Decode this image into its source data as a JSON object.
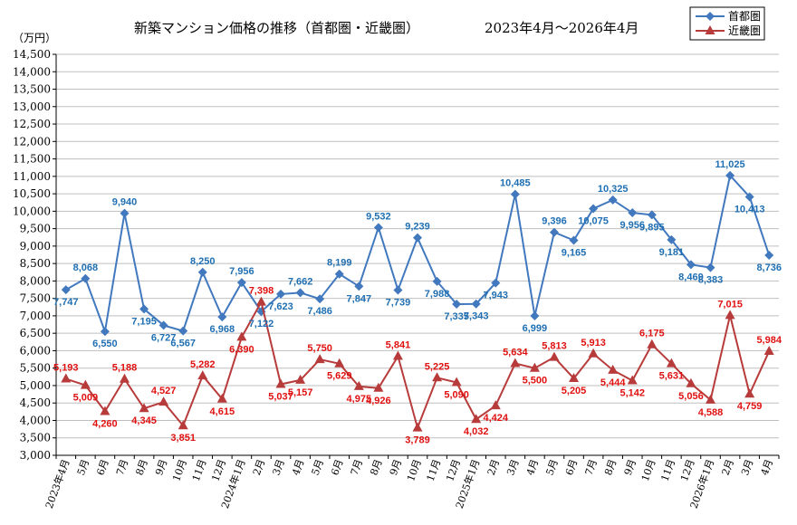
{
  "chart_data": {
    "type": "line",
    "title": "新築マンション価格の推移（首都圏・近畿圏）",
    "subtitle": "2023年4月～2026年4月",
    "ylabel": "（万円）",
    "ylim": [
      3000,
      14500
    ],
    "ystep": 500,
    "grid": "horizontal",
    "legend_position": "top-right",
    "categories": [
      "2023年4月",
      "5月",
      "6月",
      "7月",
      "8月",
      "9月",
      "10月",
      "11月",
      "12月",
      "2024年1月",
      "2月",
      "3月",
      "4月",
      "5月",
      "6月",
      "7月",
      "8月",
      "9月",
      "10月",
      "11月",
      "12月",
      "2025年1月",
      "2月",
      "3月",
      "4月",
      "5月",
      "6月",
      "7月",
      "8月",
      "9月",
      "10月",
      "11月",
      "12月",
      "2026年1月",
      "2月",
      "3月",
      "4月"
    ],
    "series": [
      {
        "name": "首都圏",
        "color": "#4178be",
        "marker": "diamond",
        "values": [
          7747,
          8068,
          6550,
          9940,
          7195,
          6727,
          6567,
          8250,
          6968,
          7956,
          7122,
          7623,
          7662,
          7486,
          8199,
          7847,
          9532,
          7739,
          9239,
          7988,
          7335,
          7343,
          7943,
          10485,
          6999,
          9396,
          9165,
          10075,
          10325,
          9956,
          9895,
          9181,
          8469,
          8383,
          11025,
          10413,
          8736
        ],
        "labels": [
          "7,747",
          "8,068",
          "6,550",
          "9,940",
          "7,195",
          "6,727",
          "6,567",
          "8,250",
          "6,968",
          "7,956",
          "7,122",
          "7,623",
          "7,662",
          "7,486",
          "8,199",
          "7,847",
          "9,532",
          "7,739",
          "9,239",
          "7,988",
          "7,335",
          "7,343",
          "7,943",
          "10,485",
          "6,999",
          "9,396",
          "9,165",
          "10,075",
          "10,325",
          "9,956",
          "9,895",
          "9,181",
          "8,469",
          "8,383",
          "11,025",
          "10,413",
          "8,736"
        ],
        "label_colors": "#1f6fb2"
      },
      {
        "name": "近畿圏",
        "color": "#b83b3b",
        "marker": "triangle",
        "values": [
          5193,
          5009,
          4260,
          5188,
          4345,
          4527,
          3851,
          5282,
          4615,
          6390,
          7398,
          5037,
          5157,
          5750,
          5629,
          4975,
          4926,
          5841,
          3789,
          5225,
          5090,
          4032,
          4424,
          5634,
          5500,
          5813,
          5205,
          5913,
          5444,
          5142,
          6175,
          5631,
          5056,
          4588,
          7015,
          4759,
          5984
        ],
        "labels": [
          "5,193",
          "5,009",
          "4,260",
          "5,188",
          "4,345",
          "4,527",
          "3,851",
          "5,282",
          "4,615",
          "6,390",
          "7,398",
          "5,037",
          "5,157",
          "5,750",
          "5,629",
          "4,975",
          "4,926",
          "5,841",
          "3,789",
          "5,225",
          "5,090",
          "4,032",
          "4,424",
          "5,634",
          "5,500",
          "5,813",
          "5,205",
          "5,913",
          "5,444",
          "5,142",
          "6,175",
          "5,631",
          "5,056",
          "4,588",
          "7,015",
          "4,759",
          "5,984"
        ],
        "label_colors": "#e01010"
      }
    ]
  }
}
